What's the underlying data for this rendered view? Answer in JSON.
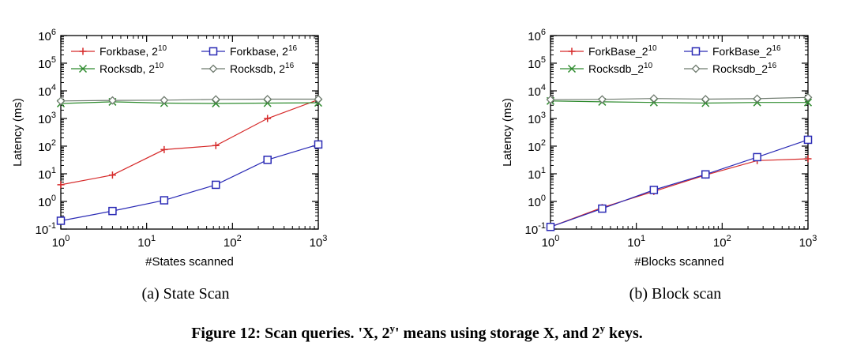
{
  "colors": {
    "forkbase_2_10": "#d62a2a",
    "forkbase_2_16": "#2a2ab5",
    "rocksdb_2_10": "#2e8b2e",
    "rocksdb_2_16": "#6e7a6e"
  },
  "figure_caption": {
    "prefix": "Figure 12: Scan queries. 'X, 2",
    "sup1": "y",
    "middle": "' means using storage X, and 2",
    "sup2": "y",
    "suffix": " keys."
  },
  "chart_data": [
    {
      "type": "line",
      "subcaption": "(a) State Scan",
      "xlabel": "#States scanned",
      "ylabel": "Latency (ms)",
      "xscale": "log",
      "yscale": "log",
      "xlim": [
        1,
        1000
      ],
      "ylim": [
        0.1,
        1000000
      ],
      "x_ticks": [
        {
          "base": "10",
          "exp": "0"
        },
        {
          "base": "10",
          "exp": "1"
        },
        {
          "base": "10",
          "exp": "2"
        },
        {
          "base": "10",
          "exp": "3"
        }
      ],
      "y_ticks": [
        {
          "base": "10",
          "exp": "-1"
        },
        {
          "base": "10",
          "exp": "0"
        },
        {
          "base": "10",
          "exp": "1"
        },
        {
          "base": "10",
          "exp": "2"
        },
        {
          "base": "10",
          "exp": "3"
        },
        {
          "base": "10",
          "exp": "4"
        },
        {
          "base": "10",
          "exp": "5"
        },
        {
          "base": "10",
          "exp": "6"
        }
      ],
      "grid": false,
      "legend_position": "top",
      "x": [
        1,
        4,
        16,
        64,
        256,
        1000
      ],
      "series": [
        {
          "name": "Forkbase, 2",
          "sup": "10",
          "marker": "plus",
          "color_key": "forkbase_2_10",
          "values": [
            4,
            9,
            75,
            105,
            1000,
            4800
          ]
        },
        {
          "name": "Forkbase, 2",
          "sup": "16",
          "marker": "square",
          "color_key": "forkbase_2_16",
          "values": [
            0.2,
            0.45,
            1.1,
            4,
            32,
            115
          ]
        },
        {
          "name": "Rocksdb, 2",
          "sup": "10",
          "marker": "x",
          "color_key": "rocksdb_2_10",
          "values": [
            3500,
            4000,
            3600,
            3500,
            3600,
            3700
          ]
        },
        {
          "name": "Rocksdb, 2",
          "sup": "16",
          "marker": "diamond",
          "color_key": "rocksdb_2_16",
          "values": [
            4300,
            4500,
            4600,
            4900,
            5000,
            5000
          ]
        }
      ]
    },
    {
      "type": "line",
      "subcaption": "(b) Block scan",
      "xlabel": "#Blocks scanned",
      "ylabel": "Latency (ms)",
      "xscale": "log",
      "yscale": "log",
      "xlim": [
        1,
        1000
      ],
      "ylim": [
        0.1,
        1000000
      ],
      "x_ticks": [
        {
          "base": "10",
          "exp": "0"
        },
        {
          "base": "10",
          "exp": "1"
        },
        {
          "base": "10",
          "exp": "2"
        },
        {
          "base": "10",
          "exp": "3"
        }
      ],
      "y_ticks": [
        {
          "base": "10",
          "exp": "-1"
        },
        {
          "base": "10",
          "exp": "0"
        },
        {
          "base": "10",
          "exp": "1"
        },
        {
          "base": "10",
          "exp": "2"
        },
        {
          "base": "10",
          "exp": "3"
        },
        {
          "base": "10",
          "exp": "4"
        },
        {
          "base": "10",
          "exp": "5"
        },
        {
          "base": "10",
          "exp": "6"
        }
      ],
      "grid": false,
      "legend_position": "top",
      "x": [
        1,
        4,
        16,
        64,
        256,
        1000
      ],
      "series": [
        {
          "name": "ForkBase_2",
          "sup": "10",
          "marker": "plus",
          "color_key": "forkbase_2_10",
          "values": [
            0.12,
            0.6,
            2.3,
            9,
            30,
            35
          ]
        },
        {
          "name": "ForkBase_2",
          "sup": "16",
          "marker": "square",
          "color_key": "forkbase_2_16",
          "values": [
            0.12,
            0.55,
            2.6,
            9.5,
            40,
            170
          ]
        },
        {
          "name": "Rocksdb_2",
          "sup": "10",
          "marker": "x",
          "color_key": "rocksdb_2_10",
          "values": [
            4300,
            4000,
            3800,
            3600,
            3800,
            3800
          ]
        },
        {
          "name": "Rocksdb_2",
          "sup": "16",
          "marker": "diamond",
          "color_key": "rocksdb_2_16",
          "values": [
            4800,
            4900,
            5300,
            5000,
            5200,
            5800
          ]
        }
      ]
    }
  ]
}
